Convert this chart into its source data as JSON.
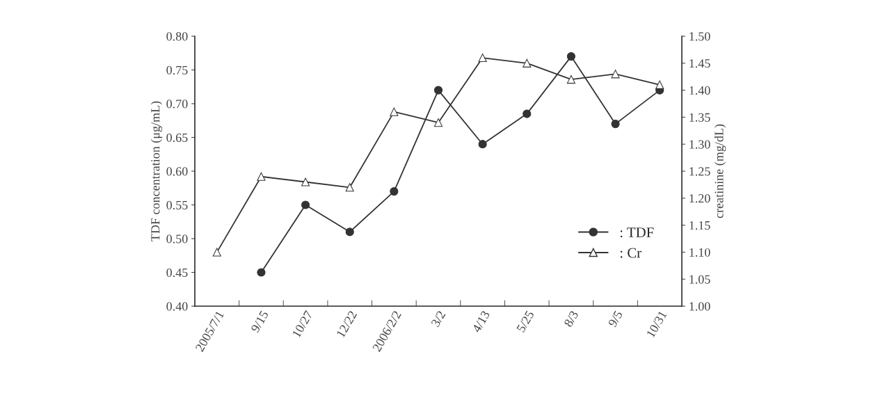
{
  "chart_data": {
    "type": "line",
    "categories": [
      "2005/7/1",
      "9/15",
      "10/27",
      "12/22",
      "2006/2/2",
      "3/2",
      "4/13",
      "5/25",
      "8/3",
      "9/5",
      "10/31"
    ],
    "ylabel": "TDF concentration (μg/mL)",
    "y2label": "creatinine (mg/dL)",
    "ylim": [
      0.4,
      0.8
    ],
    "yticks": [
      {
        "value": 0.4,
        "label": "0.40"
      },
      {
        "value": 0.45,
        "label": "0.45"
      },
      {
        "value": 0.5,
        "label": "0.50"
      },
      {
        "value": 0.55,
        "label": "0.55"
      },
      {
        "value": 0.6,
        "label": "0.60"
      },
      {
        "value": 0.65,
        "label": "0.65"
      },
      {
        "value": 0.7,
        "label": "0.70"
      },
      {
        "value": 0.75,
        "label": "0.75"
      },
      {
        "value": 0.8,
        "label": "0.80"
      }
    ],
    "y2lim": [
      1.0,
      1.5
    ],
    "y2ticks": [
      {
        "value": 1.0,
        "label": "1.00"
      },
      {
        "value": 1.05,
        "label": "1.05"
      },
      {
        "value": 1.1,
        "label": "1.10"
      },
      {
        "value": 1.15,
        "label": "1.15"
      },
      {
        "value": 1.2,
        "label": "1.20"
      },
      {
        "value": 1.25,
        "label": "1.25"
      },
      {
        "value": 1.3,
        "label": "1.30"
      },
      {
        "value": 1.35,
        "label": "1.35"
      },
      {
        "value": 1.4,
        "label": "1.40"
      },
      {
        "value": 1.45,
        "label": "1.45"
      },
      {
        "value": 1.5,
        "label": "1.50"
      }
    ],
    "legend": "bottom right",
    "grid": false,
    "line_style": "solid",
    "series": [
      {
        "name": ": TDF",
        "color": "#333333",
        "marker": "circle",
        "values": [
          null,
          0.45,
          0.55,
          0.51,
          0.57,
          0.72,
          0.64,
          0.685,
          0.77,
          0.67,
          0.72
        ]
      },
      {
        "name": ": Cr",
        "color": "#333333",
        "marker": "triangle",
        "axis": "y2",
        "values": [
          1.1,
          1.24,
          1.23,
          1.22,
          1.36,
          1.34,
          1.46,
          1.45,
          1.42,
          1.43,
          1.41
        ]
      }
    ]
  }
}
